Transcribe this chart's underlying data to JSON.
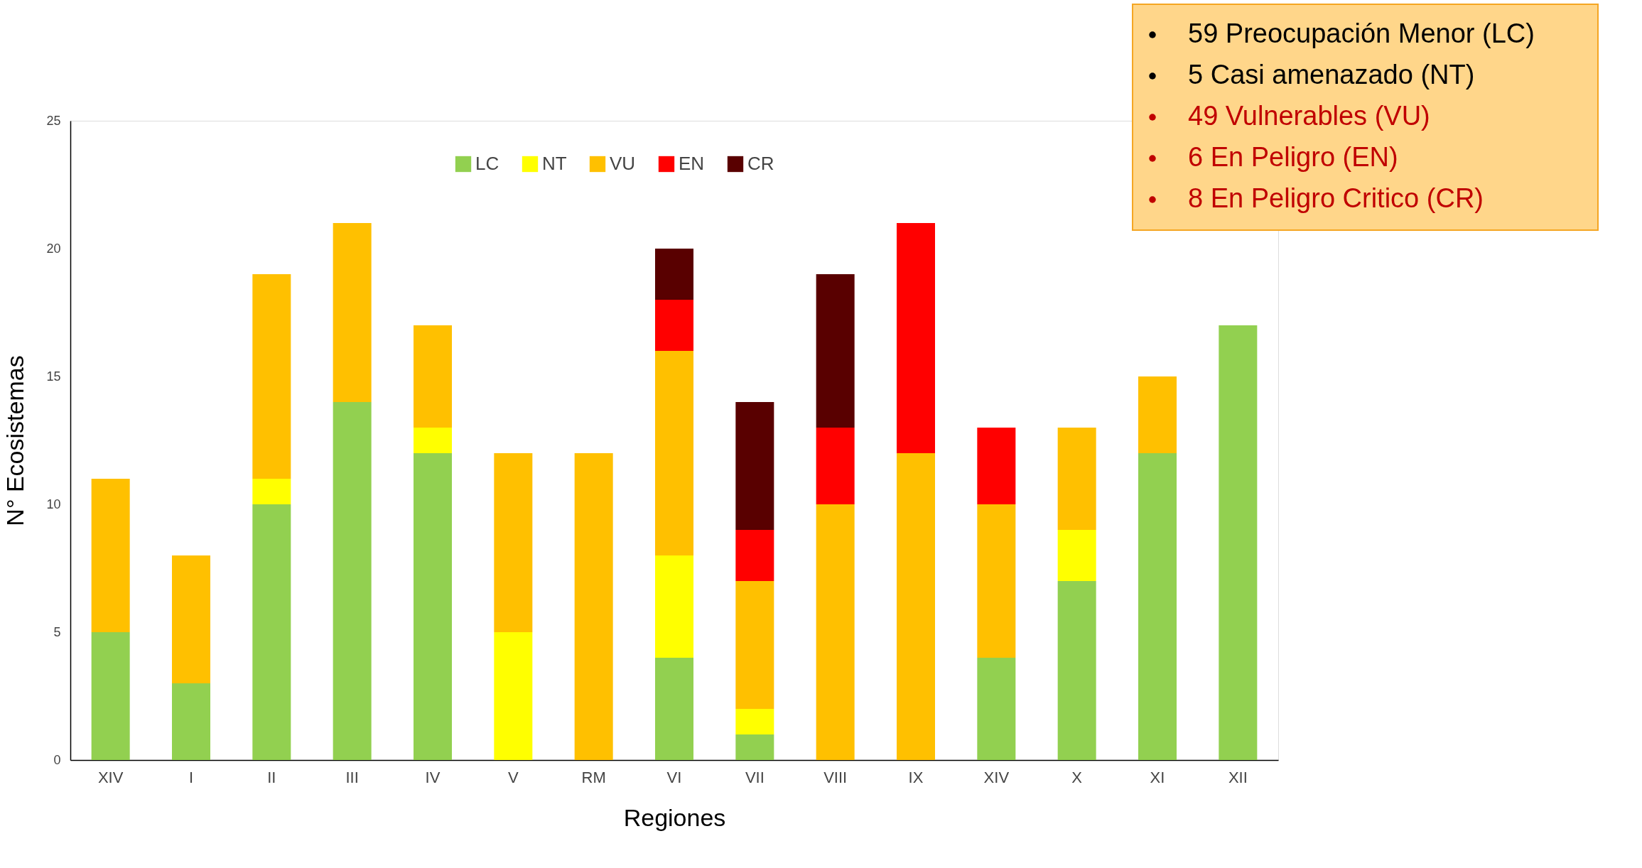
{
  "chart_data": {
    "type": "bar",
    "stacked": true,
    "xlabel": "Regiones",
    "ylabel": "N° Ecosistemas",
    "categories": [
      "XIV",
      "I",
      "II",
      "III",
      "IV",
      "V",
      "RM",
      "VI",
      "VII",
      "VIII",
      "IX",
      "XIV",
      "X",
      "XI",
      "XII"
    ],
    "series": [
      {
        "name": "LC",
        "color": "#92d050",
        "values": [
          5,
          3,
          10,
          14,
          12,
          null,
          null,
          4,
          1,
          null,
          null,
          4,
          7,
          12,
          17
        ]
      },
      {
        "name": "NT",
        "color": "#ffff00",
        "values": [
          null,
          null,
          1,
          null,
          1,
          5,
          null,
          4,
          1,
          null,
          null,
          null,
          2,
          null,
          null
        ]
      },
      {
        "name": "VU",
        "color": "#ffc000",
        "values": [
          6,
          5,
          8,
          7,
          4,
          7,
          12,
          8,
          5,
          10,
          12,
          6,
          4,
          3,
          null
        ]
      },
      {
        "name": "EN",
        "color": "#ff0000",
        "values": [
          null,
          null,
          null,
          null,
          null,
          null,
          null,
          2,
          2,
          3,
          9,
          3,
          null,
          null,
          null
        ]
      },
      {
        "name": "CR",
        "color": "#590000",
        "values": [
          null,
          null,
          null,
          null,
          null,
          null,
          null,
          2,
          5,
          6,
          null,
          null,
          null,
          null,
          null
        ]
      }
    ],
    "ylim": [
      0,
      25
    ],
    "yticks": [
      0,
      5,
      10,
      15,
      20,
      25
    ],
    "grid": false,
    "legend": "top",
    "annotations": [
      "59 Preocupación Menor (LC)",
      "5 Casi amenazado (NT)",
      "49 Vulnerables (VU)",
      "6 En Peligro (EN)",
      "8 En Peligro Critico (CR)"
    ]
  }
}
